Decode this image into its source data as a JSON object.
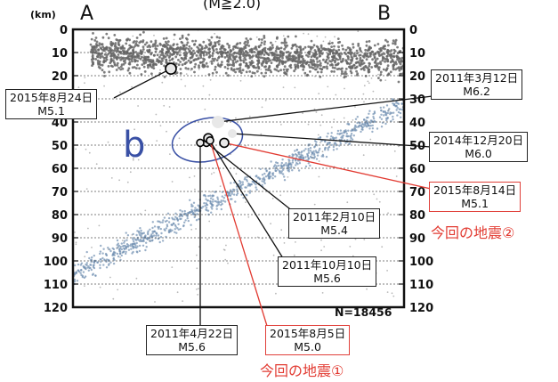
{
  "header": {
    "unit": "(km)",
    "subtitle": "(M≧2.0)",
    "left_label": "A",
    "right_label": "B"
  },
  "region_label": "b",
  "count_label": "N=18456",
  "colors": {
    "deep_seis": "#6f8fb0",
    "shallow_seis": "#666666",
    "region": "#3950a5",
    "red": "#e23b32",
    "event": "#e8e8e8"
  },
  "chart_data": {
    "type": "scatter",
    "title": "",
    "ylabel": "(km)",
    "ylim": [
      0,
      120
    ],
    "yticks": [
      0,
      10,
      20,
      30,
      40,
      50,
      60,
      70,
      80,
      90,
      100,
      110,
      120
    ],
    "grid": true,
    "events": [
      {
        "date": "2015年8月24日",
        "mag": "M5.1",
        "depth": 17
      },
      {
        "date": "2011年3月12日",
        "mag": "M6.2",
        "depth": 40
      },
      {
        "date": "2014年12月20日",
        "mag": "M6.0",
        "depth": 45
      },
      {
        "date": "2015年8月14日",
        "mag": "M5.1",
        "depth": 49
      },
      {
        "date": "2011年2月10日",
        "mag": "M5.4",
        "depth": 49
      },
      {
        "date": "2011年10月10日",
        "mag": "M5.6",
        "depth": 47
      },
      {
        "date": "2011年4月22日",
        "mag": "M5.6",
        "depth": 49
      },
      {
        "date": "2015年8月5日",
        "mag": "M5.0",
        "depth": 48
      }
    ]
  },
  "captions": {
    "quake2": "今回の地震②",
    "quake1": "今回の地震①"
  }
}
